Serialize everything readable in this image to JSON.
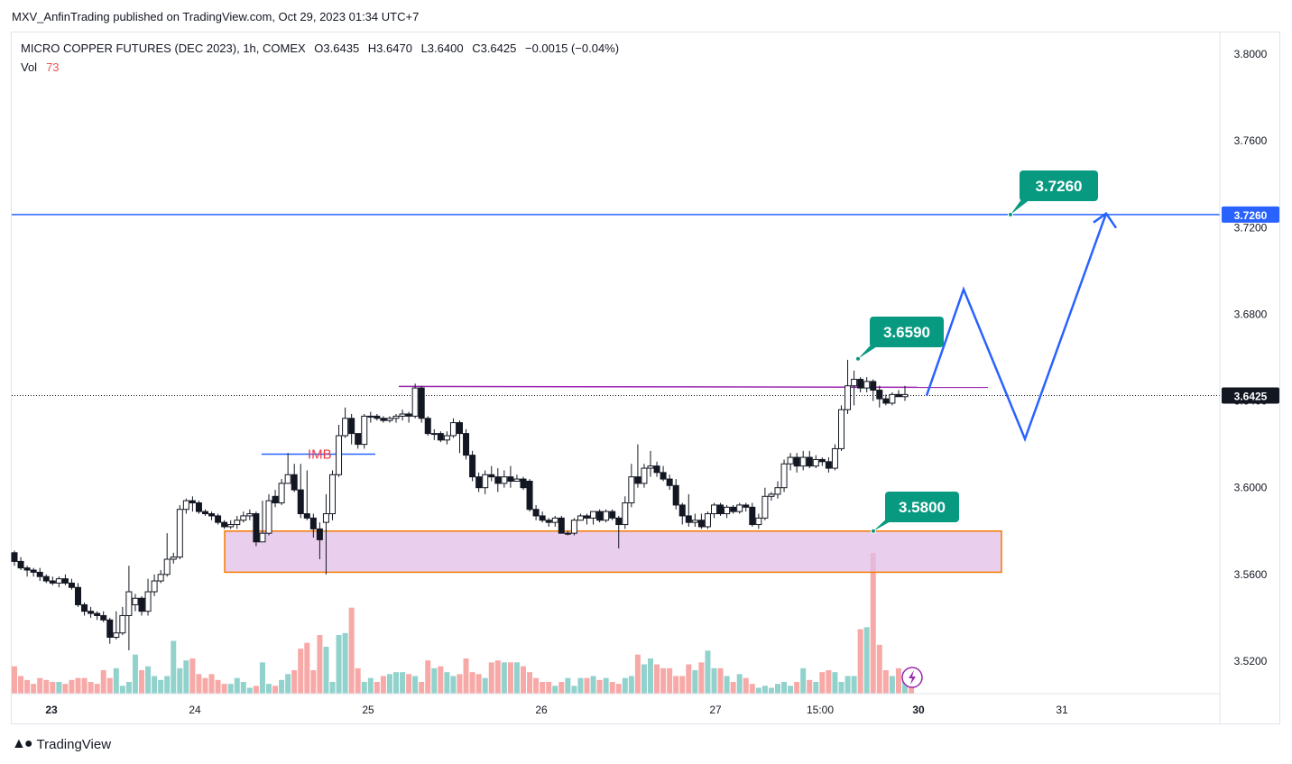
{
  "caption": "MXV_AnfinTrading published on TradingView.com, Oct 29, 2023 01:34 UTC+7",
  "legend": {
    "symbol": "MICRO COPPER FUTURES (DEC 2023), 1h, COMEX",
    "open": "O3.6435",
    "high": "H3.6470",
    "low": "L3.6400",
    "close": "C3.6425",
    "change": "−0.0015 (−0.04%)"
  },
  "volume": {
    "label": "Vol",
    "value": "73"
  },
  "footer": {
    "brand": "TradingView"
  },
  "colors": {
    "up": "#26a69a",
    "down": "#ef5350",
    "candle_up_body": "#ffffff",
    "candle_down_body": "#131722",
    "projection": "#2962ff",
    "zone_fill": "#e1bee7",
    "zone_border": "#f57c00",
    "resistance": "#9c27b0",
    "label_bg": "#089981"
  },
  "chart_data": {
    "type": "candlestick",
    "title": "MICRO COPPER FUTURES (DEC 2023), 1h, COMEX",
    "y_axis": {
      "side": "right",
      "ticks": [
        "3.8000",
        "3.7600",
        "3.7200",
        "3.6800",
        "3.6400",
        "3.6000",
        "3.5600",
        "3.5200"
      ],
      "ylim": [
        3.505,
        3.81
      ]
    },
    "x_axis": {
      "ticks": [
        "23",
        "24",
        "25",
        "26",
        "27",
        "15:00",
        "30",
        "31"
      ]
    },
    "last_price": "3.6425",
    "target_price": "3.7260",
    "annotations": [
      {
        "text": "3.7260",
        "price": 3.726
      },
      {
        "text": "3.6590",
        "price": 3.659
      },
      {
        "text": "3.5800",
        "price": 3.58
      },
      {
        "text": "IMB",
        "price": 3.615
      }
    ],
    "levels": [
      {
        "name": "target",
        "price": 3.726
      },
      {
        "name": "resistance",
        "price": 3.6465
      },
      {
        "name": "last",
        "price": 3.6425
      }
    ],
    "zone": {
      "top": 3.58,
      "bottom": 3.561
    },
    "projection_path": [
      3.6425,
      3.6915,
      3.6225,
      3.7265
    ],
    "candles": [
      [
        3.57,
        3.566,
        3.571,
        3.564
      ],
      [
        3.566,
        3.563,
        3.568,
        3.562
      ],
      [
        3.563,
        3.562,
        3.564,
        3.559
      ],
      [
        3.562,
        3.561,
        3.563,
        3.559
      ],
      [
        3.561,
        3.559,
        3.563,
        3.557
      ],
      [
        3.559,
        3.557,
        3.56,
        3.556
      ],
      [
        3.557,
        3.556,
        3.559,
        3.555
      ],
      [
        3.556,
        3.558,
        3.559,
        3.554
      ],
      [
        3.558,
        3.556,
        3.56,
        3.555
      ],
      [
        3.556,
        3.554,
        3.558,
        3.553
      ],
      [
        3.554,
        3.546,
        3.556,
        3.545
      ],
      [
        3.546,
        3.543,
        3.547,
        3.541
      ],
      [
        3.543,
        3.542,
        3.545,
        3.54
      ],
      [
        3.542,
        3.541,
        3.543,
        3.539
      ],
      [
        3.541,
        3.539,
        3.543,
        3.538
      ],
      [
        3.539,
        3.531,
        3.54,
        3.528
      ],
      [
        3.531,
        3.533,
        3.543,
        3.53
      ],
      [
        3.533,
        3.541,
        3.545,
        3.532
      ],
      [
        3.541,
        3.552,
        3.564,
        3.525
      ],
      [
        3.546,
        3.549,
        3.551,
        3.543
      ],
      [
        3.549,
        3.543,
        3.55,
        3.541
      ],
      [
        3.543,
        3.552,
        3.558,
        3.541
      ],
      [
        3.552,
        3.557,
        3.56,
        3.55
      ],
      [
        3.557,
        3.56,
        3.562,
        3.556
      ],
      [
        3.56,
        3.567,
        3.579,
        3.559
      ],
      [
        3.567,
        3.568,
        3.57,
        3.565
      ],
      [
        3.568,
        3.59,
        3.592,
        3.567
      ],
      [
        3.59,
        3.594,
        3.595,
        3.588
      ],
      [
        3.594,
        3.593,
        3.596,
        3.589
      ],
      [
        3.593,
        3.589,
        3.594,
        3.588
      ],
      [
        3.589,
        3.588,
        3.59,
        3.587
      ],
      [
        3.588,
        3.587,
        3.589,
        3.585
      ],
      [
        3.587,
        3.584,
        3.588,
        3.583
      ],
      [
        3.584,
        3.582,
        3.585,
        3.581
      ],
      [
        3.582,
        3.583,
        3.585,
        3.581
      ],
      [
        3.583,
        3.585,
        3.587,
        3.581
      ],
      [
        3.585,
        3.587,
        3.589,
        3.584
      ],
      [
        3.587,
        3.588,
        3.59,
        3.585
      ],
      [
        3.588,
        3.575,
        3.589,
        3.573
      ],
      [
        3.575,
        3.579,
        3.594,
        3.576
      ],
      [
        3.579,
        3.594,
        3.597,
        3.578
      ],
      [
        3.596,
        3.593,
        3.599,
        3.591
      ],
      [
        3.593,
        3.602,
        3.604,
        3.592
      ],
      [
        3.602,
        3.606,
        3.616,
        3.603
      ],
      [
        3.606,
        3.599,
        3.611,
        3.598
      ],
      [
        3.599,
        3.588,
        3.611,
        3.586
      ],
      [
        3.588,
        3.586,
        3.608,
        3.585
      ],
      [
        3.586,
        3.581,
        3.588,
        3.577
      ],
      [
        3.581,
        3.576,
        3.584,
        3.567
      ],
      [
        3.584,
        3.588,
        3.597,
        3.56
      ],
      [
        3.588,
        3.606,
        3.608,
        3.585
      ],
      [
        3.606,
        3.624,
        3.629,
        3.605
      ],
      [
        3.624,
        3.632,
        3.637,
        3.623
      ],
      [
        3.632,
        3.625,
        3.634,
        3.62
      ],
      [
        3.625,
        3.62,
        3.625,
        3.618
      ],
      [
        3.62,
        3.633,
        3.634,
        3.618
      ],
      [
        3.633,
        3.633,
        3.635,
        3.63
      ],
      [
        3.633,
        3.632,
        3.634,
        3.631
      ],
      [
        3.632,
        3.631,
        3.633,
        3.63
      ],
      [
        3.631,
        3.632,
        3.633,
        3.63
      ],
      [
        3.632,
        3.633,
        3.634,
        3.63
      ],
      [
        3.633,
        3.634,
        3.636,
        3.631
      ],
      [
        3.634,
        3.633,
        3.635,
        3.63
      ],
      [
        3.633,
        3.646,
        3.648,
        3.632
      ],
      [
        3.646,
        3.632,
        3.647,
        3.63
      ],
      [
        3.632,
        3.625,
        3.633,
        3.624
      ],
      [
        3.625,
        3.625,
        3.627,
        3.622
      ],
      [
        3.625,
        3.622,
        3.626,
        3.621
      ],
      [
        3.622,
        3.624,
        3.626,
        3.62
      ],
      [
        3.624,
        3.63,
        3.632,
        3.623
      ],
      [
        3.63,
        3.625,
        3.631,
        3.616
      ],
      [
        3.625,
        3.615,
        3.627,
        3.613
      ],
      [
        3.615,
        3.605,
        3.617,
        3.603
      ],
      [
        3.605,
        3.6,
        3.607,
        3.598
      ],
      [
        3.6,
        3.606,
        3.608,
        3.597
      ],
      [
        3.606,
        3.605,
        3.61,
        3.603
      ],
      [
        3.605,
        3.602,
        3.609,
        3.598
      ],
      [
        3.602,
        3.605,
        3.608,
        3.6
      ],
      [
        3.605,
        3.603,
        3.61,
        3.6
      ],
      [
        3.603,
        3.604,
        3.606,
        3.603
      ],
      [
        3.604,
        3.6,
        3.605,
        3.599
      ],
      [
        3.603,
        3.59,
        3.604,
        3.589
      ],
      [
        3.59,
        3.587,
        3.592,
        3.585
      ],
      [
        3.587,
        3.585,
        3.589,
        3.584
      ],
      [
        3.585,
        3.584,
        3.586,
        3.582
      ],
      [
        3.584,
        3.586,
        3.587,
        3.582
      ],
      [
        3.586,
        3.579,
        3.587,
        3.579
      ],
      [
        3.579,
        3.579,
        3.58,
        3.578
      ],
      [
        3.579,
        3.585,
        3.586,
        3.578
      ],
      [
        3.585,
        3.587,
        3.588,
        3.585
      ],
      [
        3.587,
        3.586,
        3.588,
        3.583
      ],
      [
        3.586,
        3.589,
        3.589,
        3.583
      ],
      [
        3.589,
        3.585,
        3.59,
        3.584
      ],
      [
        3.585,
        3.589,
        3.59,
        3.584
      ],
      [
        3.589,
        3.586,
        3.59,
        3.585
      ],
      [
        3.586,
        3.583,
        3.587,
        3.572
      ],
      [
        3.583,
        3.593,
        3.596,
        3.581
      ],
      [
        3.593,
        3.605,
        3.611,
        3.591
      ],
      [
        3.605,
        3.602,
        3.62,
        3.6
      ],
      [
        3.602,
        3.609,
        3.611,
        3.6
      ],
      [
        3.609,
        3.61,
        3.617,
        3.605
      ],
      [
        3.61,
        3.607,
        3.612,
        3.605
      ],
      [
        3.607,
        3.604,
        3.61,
        3.603
      ],
      [
        3.604,
        3.601,
        3.606,
        3.599
      ],
      [
        3.601,
        3.592,
        3.604,
        3.59
      ],
      [
        3.592,
        3.587,
        3.593,
        3.583
      ],
      [
        3.587,
        3.584,
        3.597,
        3.582
      ],
      [
        3.584,
        3.585,
        3.588,
        3.582
      ],
      [
        3.585,
        3.582,
        3.588,
        3.581
      ],
      [
        3.582,
        3.588,
        3.589,
        3.581
      ],
      [
        3.588,
        3.592,
        3.593,
        3.586
      ],
      [
        3.592,
        3.588,
        3.593,
        3.587
      ],
      [
        3.588,
        3.591,
        3.592,
        3.586
      ],
      [
        3.591,
        3.589,
        3.592,
        3.588
      ],
      [
        3.589,
        3.592,
        3.593,
        3.588
      ],
      [
        3.592,
        3.591,
        3.593,
        3.589
      ],
      [
        3.591,
        3.583,
        3.593,
        3.582
      ],
      [
        3.583,
        3.586,
        3.588,
        3.581
      ],
      [
        3.586,
        3.596,
        3.6,
        3.585
      ],
      [
        3.596,
        3.597,
        3.598,
        3.594
      ],
      [
        3.597,
        3.6,
        3.603,
        3.595
      ],
      [
        3.6,
        3.611,
        3.613,
        3.598
      ],
      [
        3.611,
        3.614,
        3.616,
        3.608
      ],
      [
        3.614,
        3.61,
        3.616,
        3.607
      ],
      [
        3.61,
        3.614,
        3.617,
        3.608
      ],
      [
        3.614,
        3.61,
        3.617,
        3.609
      ],
      [
        3.61,
        3.613,
        3.615,
        3.609
      ],
      [
        3.613,
        3.612,
        3.614,
        3.61
      ],
      [
        3.612,
        3.609,
        3.614,
        3.607
      ],
      [
        3.609,
        3.618,
        3.62,
        3.608
      ],
      [
        3.618,
        3.636,
        3.638,
        3.617
      ],
      [
        3.636,
        3.647,
        3.659,
        3.634
      ],
      [
        3.647,
        3.65,
        3.654,
        3.638
      ],
      [
        3.65,
        3.646,
        3.651,
        3.644
      ],
      [
        3.646,
        3.649,
        3.651,
        3.644
      ],
      [
        3.649,
        3.645,
        3.65,
        3.64
      ],
      [
        3.645,
        3.641,
        3.647,
        3.637
      ],
      [
        3.641,
        3.639,
        3.643,
        3.638
      ],
      [
        3.639,
        3.643,
        3.644,
        3.638
      ],
      [
        3.643,
        3.642,
        3.645,
        3.642
      ],
      [
        3.642,
        3.643,
        3.647,
        3.64
      ]
    ],
    "volume": {
      "ylim": [
        0,
        90
      ],
      "values": [
        14,
        9,
        7,
        5,
        8,
        7,
        6,
        6,
        5,
        7,
        8,
        8,
        6,
        5,
        12,
        8,
        13,
        4,
        6,
        20,
        12,
        14,
        9,
        7,
        9,
        27,
        13,
        17,
        18,
        10,
        8,
        10,
        7,
        5,
        5,
        8,
        6,
        3,
        4,
        16,
        5,
        4,
        7,
        10,
        12,
        23,
        26,
        12,
        30,
        24,
        6,
        30,
        31,
        44,
        13,
        6,
        8,
        6,
        9,
        10,
        11,
        11,
        10,
        9,
        6,
        17,
        13,
        14,
        11,
        9,
        10,
        18,
        11,
        10,
        8,
        16,
        17,
        16,
        16,
        16,
        14,
        11,
        8,
        6,
        6,
        4,
        6,
        8,
        4,
        8,
        8,
        9,
        7,
        8,
        6,
        5,
        8,
        9,
        20,
        15,
        18,
        15,
        13,
        13,
        9,
        9,
        15,
        12,
        16,
        22,
        13,
        13,
        9,
        6,
        10,
        8,
        5,
        3,
        4,
        3,
        5,
        6,
        4,
        6,
        13,
        7,
        6,
        11,
        12,
        11,
        6,
        9,
        9,
        33,
        34,
        72,
        25,
        12,
        9,
        13,
        11,
        4
      ]
    }
  }
}
